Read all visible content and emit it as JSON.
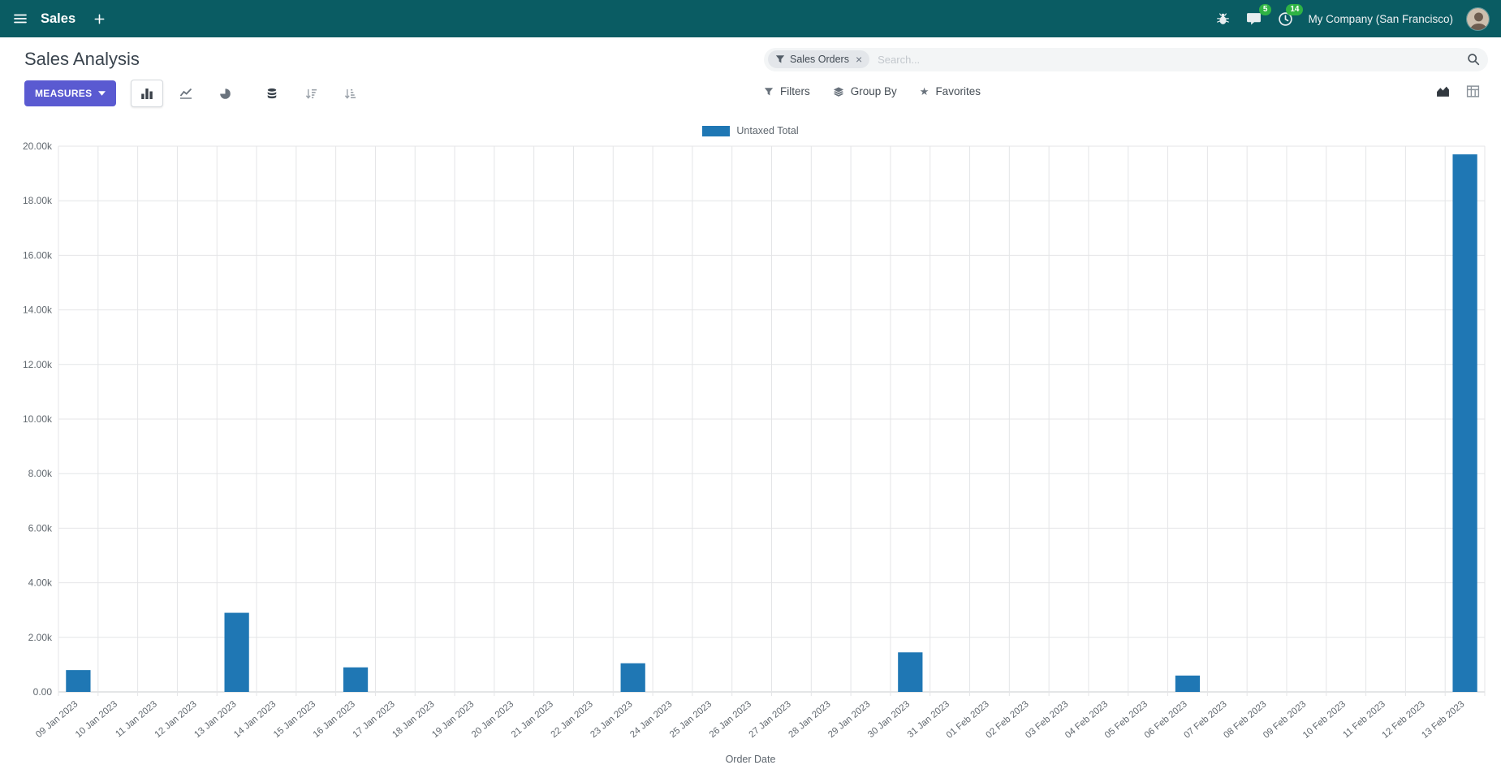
{
  "navbar": {
    "app_name": "Sales",
    "company": "My Company (San Francisco)",
    "badges": {
      "messages": "5",
      "activities": "14"
    }
  },
  "control_panel": {
    "title": "Sales Analysis",
    "search": {
      "facet_label": "Sales Orders",
      "facet_remove": "×",
      "placeholder": "Search..."
    },
    "measures_label": "MEASURES",
    "filters_label": "Filters",
    "group_by_label": "Group By",
    "favorites_label": "Favorites"
  },
  "chart_data": {
    "type": "bar",
    "title": "",
    "xlabel": "Order Date",
    "ylabel": "",
    "ylim": [
      0,
      20000
    ],
    "ytick_step": 2000,
    "yticks": [
      "0.00",
      "2.00k",
      "4.00k",
      "6.00k",
      "8.00k",
      "10.00k",
      "12.00k",
      "14.00k",
      "16.00k",
      "18.00k",
      "20.00k"
    ],
    "grid": true,
    "legend_position": "top-center",
    "categories": [
      "09 Jan 2023",
      "10 Jan 2023",
      "11 Jan 2023",
      "12 Jan 2023",
      "13 Jan 2023",
      "14 Jan 2023",
      "15 Jan 2023",
      "16 Jan 2023",
      "17 Jan 2023",
      "18 Jan 2023",
      "19 Jan 2023",
      "20 Jan 2023",
      "21 Jan 2023",
      "22 Jan 2023",
      "23 Jan 2023",
      "24 Jan 2023",
      "25 Jan 2023",
      "26 Jan 2023",
      "27 Jan 2023",
      "28 Jan 2023",
      "29 Jan 2023",
      "30 Jan 2023",
      "31 Jan 2023",
      "01 Feb 2023",
      "02 Feb 2023",
      "03 Feb 2023",
      "04 Feb 2023",
      "05 Feb 2023",
      "06 Feb 2023",
      "07 Feb 2023",
      "08 Feb 2023",
      "09 Feb 2023",
      "10 Feb 2023",
      "11 Feb 2023",
      "12 Feb 2023",
      "13 Feb 2023"
    ],
    "series": [
      {
        "name": "Untaxed Total",
        "color": "#1f77b4",
        "values": [
          800,
          0,
          0,
          0,
          2900,
          0,
          0,
          900,
          0,
          0,
          0,
          0,
          0,
          0,
          1050,
          0,
          0,
          0,
          0,
          0,
          0,
          1450,
          0,
          0,
          0,
          0,
          0,
          0,
          600,
          0,
          0,
          0,
          0,
          0,
          0,
          19700
        ]
      }
    ]
  },
  "colors": {
    "navbar_bg": "#0a5c63",
    "badge": "#2fb344",
    "primary_button": "#5a5ad1",
    "bar": "#1f77b4",
    "grid_line": "#e4e5e7",
    "baseline": "#c8cccf",
    "axis_text": "#61686f"
  },
  "icons": {
    "menu": "hamburger",
    "add": "plus",
    "debug": "bug",
    "messages": "chat-bubble",
    "activities": "clock",
    "search": "magnifier",
    "facet": "funnel",
    "filters": "funnel",
    "group_by": "layers",
    "favorites": "star ★",
    "measures_caret": "caret-down ▾",
    "bar_chart": "vertical-bars",
    "line_chart": "polyline",
    "pie_chart": "pie",
    "stacked": "database-stack",
    "sort_desc": "sort-amount-desc",
    "sort_asc": "sort-amount-asc",
    "graph_view": "area-chart",
    "pivot_view": "pivot-grid"
  }
}
